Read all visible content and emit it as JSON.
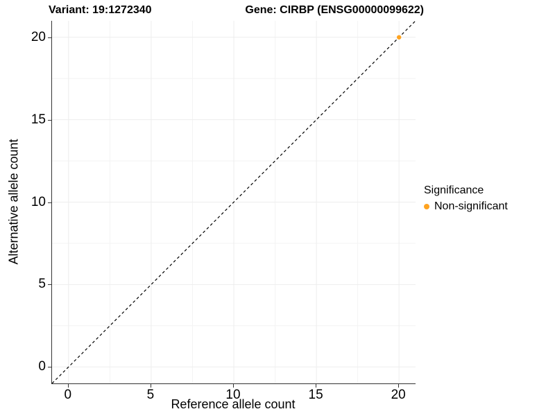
{
  "chart_data": {
    "type": "scatter",
    "title_left": "Variant: 19:1272340",
    "title_right": "Gene: CIRBP (ENSG00000099622)",
    "xlabel": "Reference allele count",
    "ylabel": "Alternative allele count",
    "xlim": [
      -1,
      21
    ],
    "ylim": [
      -1,
      21
    ],
    "xticks": [
      0,
      5,
      10,
      15,
      20
    ],
    "yticks": [
      0,
      5,
      10,
      15,
      20
    ],
    "xminor": [
      2.5,
      7.5,
      12.5,
      17.5
    ],
    "yminor": [
      2.5,
      7.5,
      12.5,
      17.5
    ],
    "grid": true,
    "reference_line": {
      "slope": 1,
      "intercept": 0,
      "style": "dashed",
      "color": "#000000"
    },
    "series": [
      {
        "name": "Non-significant",
        "color": "#FFA320",
        "points": [
          {
            "x": 20,
            "y": 20
          }
        ]
      }
    ],
    "legend": {
      "title": "Significance",
      "position": "right",
      "entries": [
        {
          "label": "Non-significant",
          "color": "#FFA320"
        }
      ]
    },
    "colors": {
      "grid_major": "#EDEDED",
      "grid_minor": "#F3F3F3",
      "axis_line": "#333333",
      "text": "#000000",
      "background": "#FFFFFF"
    }
  }
}
